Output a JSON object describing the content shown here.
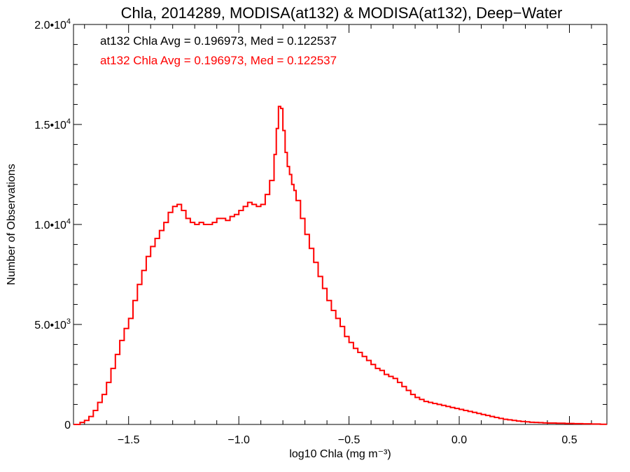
{
  "chart_data": {
    "type": "histogram-step",
    "title": "Chla, 2014289, MODISA(at132) & MODISA(at132), Deep−Water",
    "xlabel": "log10 Chla (mg m⁻³)",
    "ylabel": "Number of Observations",
    "xlim": [
      -1.75,
      0.67
    ],
    "ylim": [
      0,
      20000
    ],
    "x_ticks": [
      -1.5,
      -1.0,
      -0.5,
      0.0,
      0.5
    ],
    "x_tick_labels": [
      "−1.5",
      "−1.0",
      "−0.5",
      "0.0",
      "0.5"
    ],
    "y_ticks": [
      0,
      5000,
      10000,
      15000,
      20000
    ],
    "y_tick_labels": [
      {
        "mant": "0",
        "exp": ""
      },
      {
        "mant": "5.0•10",
        "exp": "3"
      },
      {
        "mant": "1.0•10",
        "exp": "4"
      },
      {
        "mant": "1.5•10",
        "exp": "4"
      },
      {
        "mant": "2.0•10",
        "exp": "4"
      }
    ],
    "legend": [
      {
        "text": "at132 Chla Avg = 0.196973, Med = 0.122537",
        "color": "#000000"
      },
      {
        "text": "at132 Chla Avg = 0.196973, Med = 0.122537",
        "color": "#ff0000"
      }
    ],
    "series": [
      {
        "color": "#ff0000",
        "points": [
          [
            -1.75,
            0
          ],
          [
            -1.72,
            100
          ],
          [
            -1.7,
            200
          ],
          [
            -1.68,
            400
          ],
          [
            -1.66,
            700
          ],
          [
            -1.64,
            1100
          ],
          [
            -1.62,
            1500
          ],
          [
            -1.6,
            2100
          ],
          [
            -1.58,
            2800
          ],
          [
            -1.56,
            3500
          ],
          [
            -1.54,
            4200
          ],
          [
            -1.52,
            4800
          ],
          [
            -1.5,
            5300
          ],
          [
            -1.48,
            6200
          ],
          [
            -1.46,
            7000
          ],
          [
            -1.44,
            7700
          ],
          [
            -1.42,
            8400
          ],
          [
            -1.4,
            8900
          ],
          [
            -1.38,
            9300
          ],
          [
            -1.36,
            9700
          ],
          [
            -1.34,
            10100
          ],
          [
            -1.32,
            10600
          ],
          [
            -1.3,
            10900
          ],
          [
            -1.28,
            11000
          ],
          [
            -1.26,
            10700
          ],
          [
            -1.24,
            10300
          ],
          [
            -1.22,
            10100
          ],
          [
            -1.2,
            10000
          ],
          [
            -1.18,
            10100
          ],
          [
            -1.16,
            10000
          ],
          [
            -1.14,
            10000
          ],
          [
            -1.12,
            10100
          ],
          [
            -1.1,
            10300
          ],
          [
            -1.08,
            10300
          ],
          [
            -1.06,
            10200
          ],
          [
            -1.04,
            10400
          ],
          [
            -1.02,
            10500
          ],
          [
            -1.0,
            10700
          ],
          [
            -0.98,
            10900
          ],
          [
            -0.96,
            11100
          ],
          [
            -0.94,
            11000
          ],
          [
            -0.92,
            10900
          ],
          [
            -0.9,
            11000
          ],
          [
            -0.88,
            11500
          ],
          [
            -0.86,
            12200
          ],
          [
            -0.84,
            13500
          ],
          [
            -0.83,
            14800
          ],
          [
            -0.82,
            15900
          ],
          [
            -0.81,
            15800
          ],
          [
            -0.8,
            14700
          ],
          [
            -0.79,
            13600
          ],
          [
            -0.78,
            12900
          ],
          [
            -0.77,
            12500
          ],
          [
            -0.76,
            12000
          ],
          [
            -0.75,
            11700
          ],
          [
            -0.74,
            11200
          ],
          [
            -0.72,
            10300
          ],
          [
            -0.7,
            9500
          ],
          [
            -0.68,
            8800
          ],
          [
            -0.66,
            8100
          ],
          [
            -0.64,
            7400
          ],
          [
            -0.62,
            6800
          ],
          [
            -0.6,
            6200
          ],
          [
            -0.58,
            5700
          ],
          [
            -0.56,
            5300
          ],
          [
            -0.54,
            4900
          ],
          [
            -0.52,
            4400
          ],
          [
            -0.5,
            4100
          ],
          [
            -0.48,
            3800
          ],
          [
            -0.46,
            3600
          ],
          [
            -0.44,
            3400
          ],
          [
            -0.42,
            3200
          ],
          [
            -0.4,
            3000
          ],
          [
            -0.38,
            2800
          ],
          [
            -0.36,
            2700
          ],
          [
            -0.34,
            2500
          ],
          [
            -0.32,
            2400
          ],
          [
            -0.3,
            2300
          ],
          [
            -0.28,
            2100
          ],
          [
            -0.26,
            1900
          ],
          [
            -0.24,
            1700
          ],
          [
            -0.22,
            1500
          ],
          [
            -0.2,
            1350
          ],
          [
            -0.18,
            1250
          ],
          [
            -0.16,
            1150
          ],
          [
            -0.14,
            1100
          ],
          [
            -0.12,
            1050
          ],
          [
            -0.1,
            1000
          ],
          [
            -0.08,
            950
          ],
          [
            -0.06,
            900
          ],
          [
            -0.04,
            850
          ],
          [
            -0.02,
            800
          ],
          [
            0.0,
            750
          ],
          [
            0.02,
            700
          ],
          [
            0.04,
            650
          ],
          [
            0.06,
            600
          ],
          [
            0.08,
            550
          ],
          [
            0.1,
            500
          ],
          [
            0.12,
            450
          ],
          [
            0.14,
            400
          ],
          [
            0.16,
            350
          ],
          [
            0.18,
            300
          ],
          [
            0.2,
            260
          ],
          [
            0.22,
            230
          ],
          [
            0.24,
            200
          ],
          [
            0.26,
            170
          ],
          [
            0.28,
            150
          ],
          [
            0.3,
            130
          ],
          [
            0.32,
            110
          ],
          [
            0.34,
            100
          ],
          [
            0.36,
            90
          ],
          [
            0.38,
            80
          ],
          [
            0.4,
            70
          ],
          [
            0.44,
            60
          ],
          [
            0.48,
            50
          ],
          [
            0.52,
            40
          ],
          [
            0.56,
            30
          ],
          [
            0.6,
            20
          ],
          [
            0.64,
            10
          ],
          [
            0.67,
            10
          ]
        ]
      }
    ]
  }
}
